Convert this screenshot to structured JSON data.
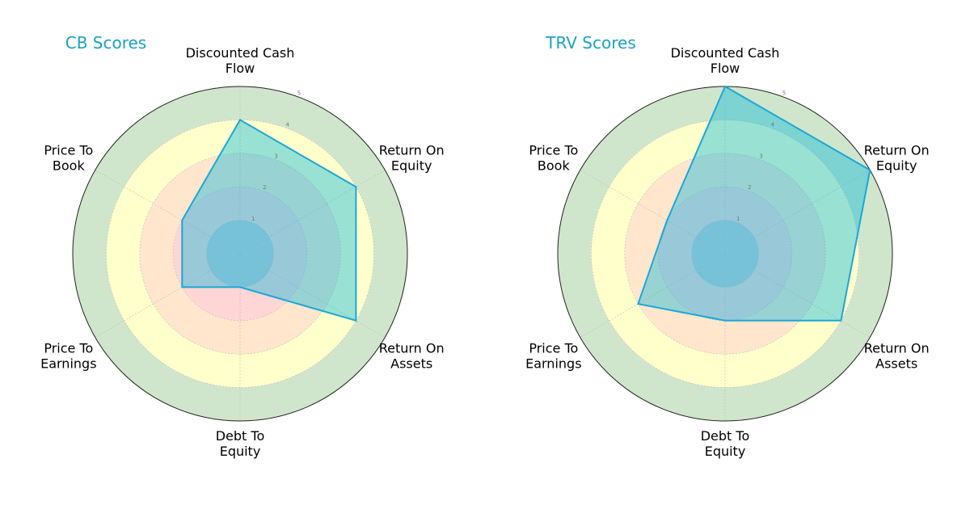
{
  "chart_data": [
    {
      "type": "radar",
      "title": "CB Scores",
      "categories": [
        "Discounted Cash Flow",
        "Return On Equity",
        "Return On Assets",
        "Debt To Equity",
        "Price To Earnings",
        "Price To Book"
      ],
      "values": [
        4,
        4,
        4,
        1,
        2,
        2
      ],
      "rlim": [
        0,
        5
      ],
      "rticks": [
        "1",
        "2",
        "3",
        "4",
        "5"
      ],
      "grid": true,
      "fill_color": "#00b4dc",
      "edge_color": "#1aa8d8"
    },
    {
      "type": "radar",
      "title": "TRV Scores",
      "categories": [
        "Discounted Cash Flow",
        "Return On Equity",
        "Return On Assets",
        "Debt To Equity",
        "Price To Earnings",
        "Price To Book"
      ],
      "values": [
        5,
        5,
        4,
        2,
        3,
        2
      ],
      "rlim": [
        0,
        5
      ],
      "rticks": [
        "1",
        "2",
        "3",
        "4",
        "5"
      ],
      "grid": true,
      "fill_color": "#00b4dc",
      "edge_color": "#1aa8d8"
    }
  ],
  "zone_colors": {
    "band_0_1": "#c8ccd8",
    "band_1_2": "#ffd6d6",
    "band_2_3": "#ffe6cc",
    "band_3_4": "#ffffcc",
    "band_4_5": "#d0e6cc",
    "outline": "#222222"
  }
}
